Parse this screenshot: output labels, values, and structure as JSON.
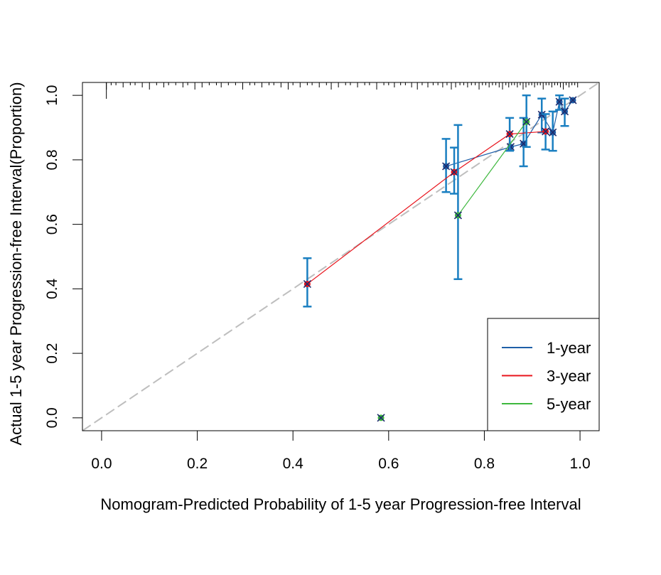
{
  "chart_data": {
    "type": "scatter",
    "title": "",
    "xlabel": "Nomogram-Predicted Probability of 1-5 year Progression-free Interval",
    "ylabel": "Actual 1-5 year Progression-free Interval(Proportion)",
    "xlim": [
      -0.04,
      1.04
    ],
    "ylim": [
      -0.04,
      1.04
    ],
    "x_ticks": [
      "0.0",
      "0.2",
      "0.4",
      "0.6",
      "0.8",
      "1.0"
    ],
    "y_ticks": [
      "0.0",
      "0.2",
      "0.4",
      "0.6",
      "0.8",
      "1.0"
    ],
    "grid": false,
    "legend_position": "bottom-right",
    "reference_line": {
      "style": "dashed",
      "color": "#bebebe",
      "from": [
        -0.04,
        -0.04
      ],
      "to": [
        1.04,
        1.04
      ]
    },
    "series": [
      {
        "name": "1-year",
        "color": "#1f5fa8",
        "points": [
          {
            "x": 0.72,
            "y": 0.78,
            "lo": 0.7,
            "hi": 0.865
          },
          {
            "x": 0.855,
            "y": 0.84
          },
          {
            "x": 0.882,
            "y": 0.85,
            "lo": 0.78,
            "hi": 0.93
          },
          {
            "x": 0.92,
            "y": 0.94,
            "lo": 0.885,
            "hi": 0.99
          },
          {
            "x": 0.943,
            "y": 0.885,
            "lo": 0.828,
            "hi": 0.95
          },
          {
            "x": 0.957,
            "y": 0.98,
            "lo": 0.955,
            "hi": 1.0
          },
          {
            "x": 0.968,
            "y": 0.95,
            "lo": 0.905,
            "hi": 0.99
          },
          {
            "x": 0.985,
            "y": 0.985
          }
        ]
      },
      {
        "name": "3-year",
        "color": "#e8141c",
        "points": [
          {
            "x": 0.43,
            "y": 0.415,
            "lo": 0.345,
            "hi": 0.495
          },
          {
            "x": 0.737,
            "y": 0.762,
            "lo": 0.695,
            "hi": 0.838
          },
          {
            "x": 0.853,
            "y": 0.88,
            "lo": 0.828,
            "hi": 0.93
          },
          {
            "x": 0.928,
            "y": 0.888,
            "lo": 0.832,
            "hi": 0.942
          }
        ]
      },
      {
        "name": "5-year",
        "color": "#3db83d",
        "points": [
          {
            "x": 0.584,
            "y": 0.0
          },
          {
            "x": 0.745,
            "y": 0.628,
            "lo": 0.43,
            "hi": 0.908
          },
          {
            "x": 0.888,
            "y": 0.918,
            "lo": 0.84,
            "hi": 1.0
          }
        ]
      }
    ],
    "rug_x": [
      0.01,
      0.02,
      0.03,
      0.045,
      0.06,
      0.07,
      0.085,
      0.1,
      0.115,
      0.13,
      0.14,
      0.155,
      0.17,
      0.18,
      0.195,
      0.21,
      0.225,
      0.24,
      0.25,
      0.265,
      0.28,
      0.295,
      0.31,
      0.32,
      0.335,
      0.35,
      0.36,
      0.375,
      0.39,
      0.4,
      0.415,
      0.43,
      0.44,
      0.455,
      0.47,
      0.48,
      0.495,
      0.51,
      0.52,
      0.535,
      0.55,
      0.56,
      0.575,
      0.59,
      0.6,
      0.612,
      0.625,
      0.635,
      0.648,
      0.66,
      0.67,
      0.682,
      0.693,
      0.703,
      0.713,
      0.722,
      0.731,
      0.74,
      0.749,
      0.757,
      0.765,
      0.773,
      0.781,
      0.789,
      0.796,
      0.803,
      0.81,
      0.817,
      0.824,
      0.831,
      0.838,
      0.845,
      0.851,
      0.857,
      0.863,
      0.869,
      0.875,
      0.881,
      0.887,
      0.893,
      0.899,
      0.905,
      0.911,
      0.917,
      0.923,
      0.929,
      0.935,
      0.941,
      0.947,
      0.953,
      0.959,
      0.965,
      0.971,
      0.977,
      0.983,
      0.989,
      0.995
    ]
  }
}
